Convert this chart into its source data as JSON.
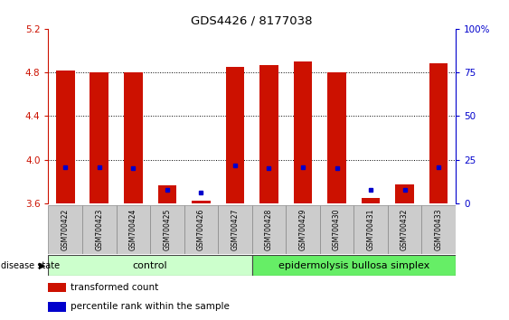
{
  "title": "GDS4426 / 8177038",
  "samples": [
    "GSM700422",
    "GSM700423",
    "GSM700424",
    "GSM700425",
    "GSM700426",
    "GSM700427",
    "GSM700428",
    "GSM700429",
    "GSM700430",
    "GSM700431",
    "GSM700432",
    "GSM700433"
  ],
  "red_values": [
    4.82,
    4.8,
    4.8,
    3.76,
    3.62,
    4.85,
    4.87,
    4.9,
    4.8,
    3.65,
    3.77,
    4.88
  ],
  "blue_values": [
    3.93,
    3.93,
    3.92,
    3.72,
    3.7,
    3.95,
    3.92,
    3.93,
    3.92,
    3.72,
    3.72,
    3.93
  ],
  "ylim_left": [
    3.6,
    5.2
  ],
  "ylim_right": [
    0,
    100
  ],
  "yticks_left": [
    3.6,
    4.0,
    4.4,
    4.8,
    5.2
  ],
  "yticks_right": [
    0,
    25,
    50,
    75,
    100
  ],
  "ytick_labels_right": [
    "0",
    "25",
    "50",
    "75",
    "100%"
  ],
  "control_samples": 6,
  "disease_samples": 6,
  "control_label": "control",
  "disease_label": "epidermolysis bullosa simplex",
  "disease_state_label": "disease state",
  "legend_red": "transformed count",
  "legend_blue": "percentile rank within the sample",
  "bar_color": "#cc1100",
  "blue_color": "#0000cc",
  "control_bg": "#ccffcc",
  "disease_bg": "#66ee66",
  "ticklabel_bg": "#cccccc",
  "bar_width": 0.55,
  "base_value": 3.6
}
